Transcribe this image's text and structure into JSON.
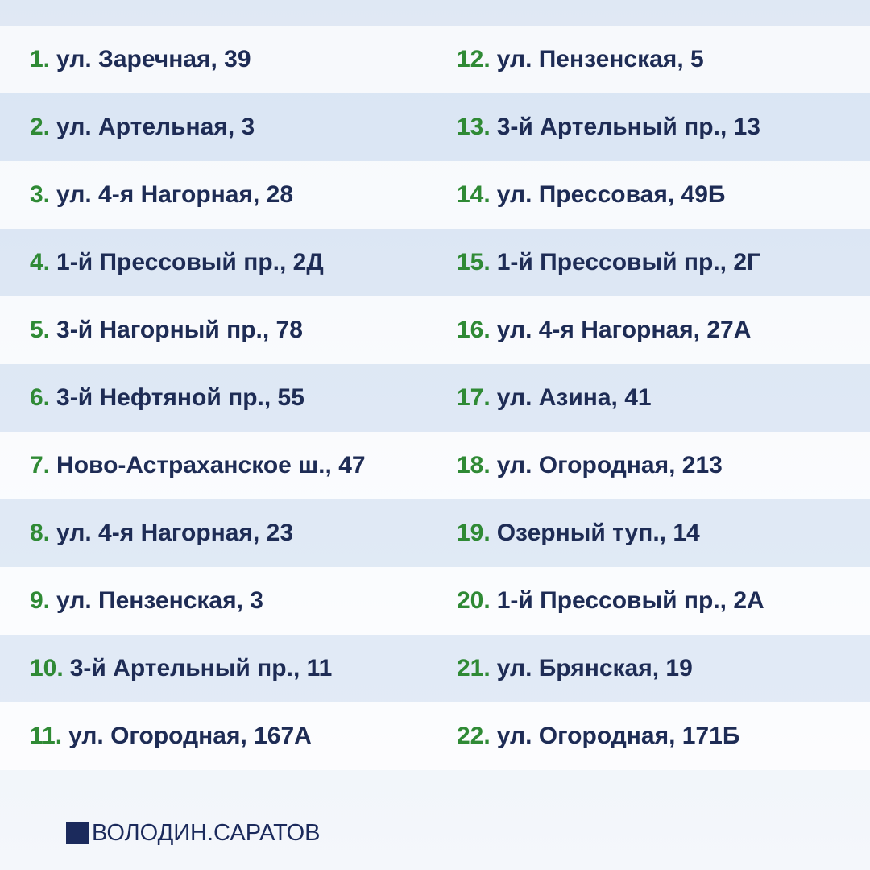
{
  "items": [
    {
      "number": "1.",
      "text": "ул. Заречная, 39"
    },
    {
      "number": "2.",
      "text": "ул. Артельная, 3"
    },
    {
      "number": "3.",
      "text": "ул. 4-я Нагорная, 28"
    },
    {
      "number": "4.",
      "text": "1-й Прессовый пр., 2Д"
    },
    {
      "number": "5.",
      "text": "3-й Нагорный пр., 78"
    },
    {
      "number": "6.",
      "text": "3-й Нефтяной пр., 55"
    },
    {
      "number": "7.",
      "text": "Ново-Астраханское ш., 47"
    },
    {
      "number": "8.",
      "text": "ул. 4-я Нагорная, 23"
    },
    {
      "number": "9.",
      "text": "ул. Пензенская, 3"
    },
    {
      "number": "10.",
      "text": "3-й Артельный пр., 11"
    },
    {
      "number": "11.",
      "text": "ул. Огородная, 167А"
    },
    {
      "number": "12.",
      "text": "ул. Пензенская, 5"
    },
    {
      "number": "13.",
      "text": "3-й Артельный пр., 13"
    },
    {
      "number": "14.",
      "text": "ул. Прессовая, 49Б"
    },
    {
      "number": "15.",
      "text": "1-й Прессовый пр., 2Г"
    },
    {
      "number": "16.",
      "text": "ул. 4-я Нагорная, 27А"
    },
    {
      "number": "17.",
      "text": "ул. Азина, 41"
    },
    {
      "number": "18.",
      "text": "ул. Огородная, 213"
    },
    {
      "number": "19.",
      "text": "Озерный туп., 14"
    },
    {
      "number": "20.",
      "text": "1-й Прессовый пр., 2А"
    },
    {
      "number": "21.",
      "text": "ул. Брянская, 19"
    },
    {
      "number": "22.",
      "text": "ул. Огородная, 171Б"
    }
  ],
  "footer": {
    "brand": "ВОЛОДИН.САРАТОВ"
  }
}
